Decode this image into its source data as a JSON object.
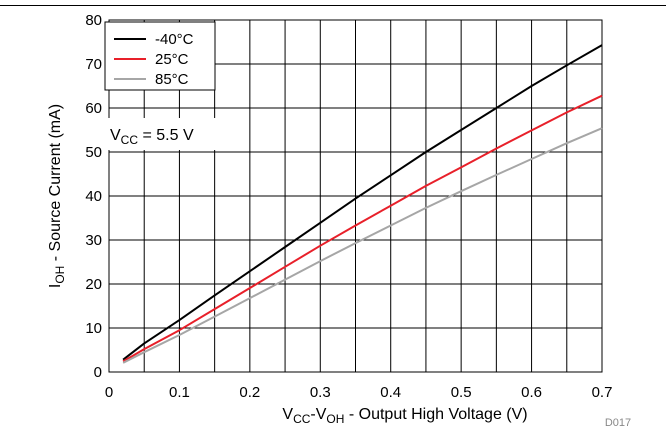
{
  "chart_data": {
    "type": "line",
    "title": "",
    "x": [
      0.02,
      0.05,
      0.1,
      0.15,
      0.2,
      0.25,
      0.3,
      0.35,
      0.4,
      0.45,
      0.5,
      0.55,
      0.6,
      0.65,
      0.7
    ],
    "xlim": [
      0,
      0.7
    ],
    "ylim": [
      0,
      80
    ],
    "xticks": [
      "0",
      "0.1",
      "0.2",
      "0.3",
      "0.4",
      "0.5",
      "0.6",
      "0.7"
    ],
    "yticks": [
      "0",
      "10",
      "20",
      "30",
      "40",
      "50",
      "60",
      "70",
      "80"
    ],
    "xlabel": {
      "main": "V",
      "sub1": "CC",
      "mid": "-V",
      "sub2": "OH",
      "rest": " - Output High Voltage (V)"
    },
    "ylabel": {
      "main": "I",
      "sub": "OH",
      "rest": " - Source Current (mA)"
    },
    "grid": true,
    "legend_position": "top-left",
    "series": [
      {
        "name": "-40°C",
        "color": "#000000",
        "values": [
          2.8,
          6.5,
          11.8,
          17.4,
          22.9,
          28.4,
          33.9,
          39.4,
          44.7,
          50.0,
          55.0,
          60.0,
          65.0,
          69.7,
          74.3
        ]
      },
      {
        "name": "25°C",
        "color": "#e8202a",
        "values": [
          2.4,
          5.2,
          9.5,
          14.3,
          19.1,
          23.9,
          28.7,
          33.3,
          37.8,
          42.3,
          46.5,
          50.8,
          54.9,
          59.0,
          62.8
        ]
      },
      {
        "name": "85°C",
        "color": "#a6a6a6",
        "values": [
          2.1,
          4.5,
          8.4,
          12.6,
          16.8,
          21.0,
          25.2,
          29.3,
          33.3,
          37.3,
          41.1,
          44.8,
          48.4,
          52.0,
          55.4
        ]
      }
    ],
    "annotation": {
      "main": "V",
      "sub": "CC",
      "rest": " = 5.5 V"
    },
    "figure_code": "D017"
  }
}
